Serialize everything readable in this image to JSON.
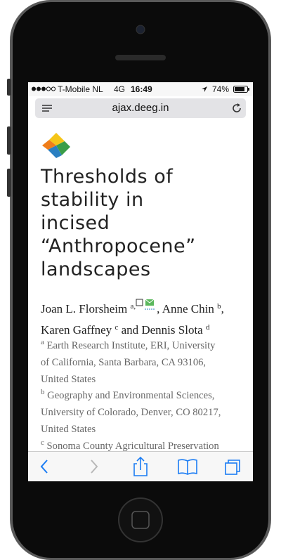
{
  "status_bar": {
    "carrier": "T-Mobile NL",
    "network": "4G",
    "time": "16:49",
    "battery": "74%"
  },
  "browser": {
    "url": "ajax.deeg.in"
  },
  "article": {
    "title_lines": [
      "Thresholds of",
      "stability in",
      "incised",
      "“Anthropocene”",
      "landscapes"
    ],
    "authors": [
      {
        "name": "Joan L. Florsheim",
        "sup": "a,"
      },
      {
        "name": ", Anne Chin",
        "sup": "b",
        "after": ","
      },
      {
        "name": "Karen Gaffney",
        "sup": "c"
      },
      {
        "name": "and Dennis Slota",
        "sup": "d"
      }
    ],
    "affiliations": [
      {
        "label": "a",
        "lines": [
          "Earth Research Institute, ERI, University",
          "of California, Santa Barbara, CA 93106,",
          "United States"
        ]
      },
      {
        "label": "b",
        "lines": [
          "Geography and Environmental Sciences,",
          "University of Colorado, Denver, CO 80217,",
          "United States"
        ]
      },
      {
        "label": "c",
        "lines": [
          "Sonoma County Agricultural Preservation"
        ]
      }
    ]
  }
}
